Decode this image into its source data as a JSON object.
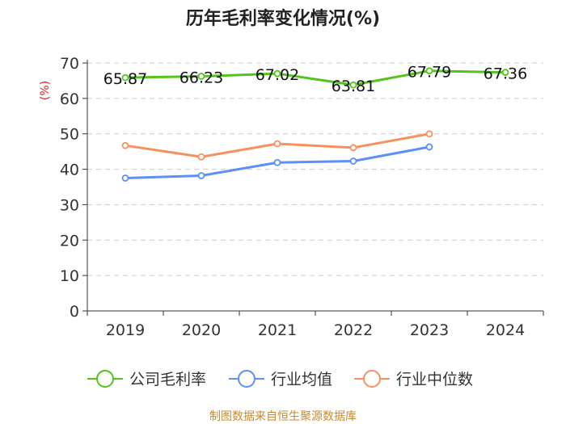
{
  "chart_data": {
    "type": "line",
    "title": "历年毛利率变化情况(%)",
    "ylabel": "(%)",
    "xlabel": "",
    "ylim": [
      0,
      70
    ],
    "yticks": [
      0,
      10,
      20,
      30,
      40,
      50,
      60,
      70
    ],
    "categories": [
      "2019",
      "2020",
      "2021",
      "2022",
      "2023",
      "2024"
    ],
    "grid": true,
    "legend_position": "bottom",
    "series": [
      {
        "name": "公司毛利率",
        "color": "#52c41a",
        "values": [
          65.87,
          66.23,
          67.02,
          63.81,
          67.79,
          67.36
        ],
        "labels": [
          "65.87",
          "66.23",
          "67.02",
          "63.81",
          "67.79",
          "67.36"
        ]
      },
      {
        "name": "行业均值",
        "color": "#5b8ff9",
        "values": [
          37.5,
          38.2,
          41.9,
          42.3,
          46.3,
          null
        ]
      },
      {
        "name": "行业中位数",
        "color": "#f6915f",
        "values": [
          46.7,
          43.5,
          47.2,
          46.1,
          50.0,
          null
        ]
      }
    ],
    "source": "制图数据来自恒生聚源数据库"
  }
}
